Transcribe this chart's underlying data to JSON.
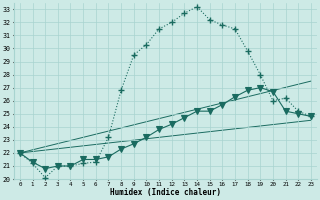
{
  "xlabel": "Humidex (Indice chaleur)",
  "bg_color": "#cdeae6",
  "grid_color": "#a8d4d0",
  "line_color": "#1a6b60",
  "xlim": [
    -0.5,
    23.5
  ],
  "ylim": [
    20,
    33.5
  ],
  "xticks": [
    0,
    1,
    2,
    3,
    4,
    5,
    6,
    7,
    8,
    9,
    10,
    11,
    12,
    13,
    14,
    15,
    16,
    17,
    18,
    19,
    20,
    21,
    22,
    23
  ],
  "yticks": [
    20,
    21,
    22,
    23,
    24,
    25,
    26,
    27,
    28,
    29,
    30,
    31,
    32,
    33
  ],
  "line1_x": [
    0,
    1,
    2,
    3,
    4,
    5,
    6,
    7,
    8,
    9,
    10,
    11,
    12,
    13,
    14,
    15,
    16,
    17,
    18,
    19,
    20,
    21,
    22,
    23
  ],
  "line1_y": [
    22.0,
    21.2,
    20.1,
    21.0,
    21.0,
    21.2,
    21.3,
    23.2,
    26.8,
    29.5,
    30.3,
    31.5,
    32.0,
    32.7,
    33.2,
    32.2,
    31.8,
    31.5,
    29.8,
    28.0,
    26.0,
    26.2,
    25.2,
    24.8
  ],
  "line2_x": [
    0,
    1,
    2,
    3,
    4,
    5,
    6,
    7,
    8,
    9,
    10,
    11,
    12,
    13,
    14,
    15,
    16,
    17,
    18,
    19,
    20,
    21,
    22,
    23
  ],
  "line2_y": [
    22.0,
    21.3,
    20.8,
    21.0,
    21.0,
    21.5,
    21.5,
    21.7,
    22.3,
    22.7,
    23.2,
    23.8,
    24.2,
    24.7,
    25.2,
    25.2,
    25.7,
    26.3,
    26.8,
    27.0,
    26.7,
    25.2,
    25.0,
    24.8
  ],
  "line3_x": [
    0,
    23
  ],
  "line3_y": [
    22.0,
    24.5
  ],
  "line4_x": [
    0,
    23
  ],
  "line4_y": [
    22.0,
    27.5
  ],
  "marker_plus_size": 4,
  "marker_tri_size": 4
}
